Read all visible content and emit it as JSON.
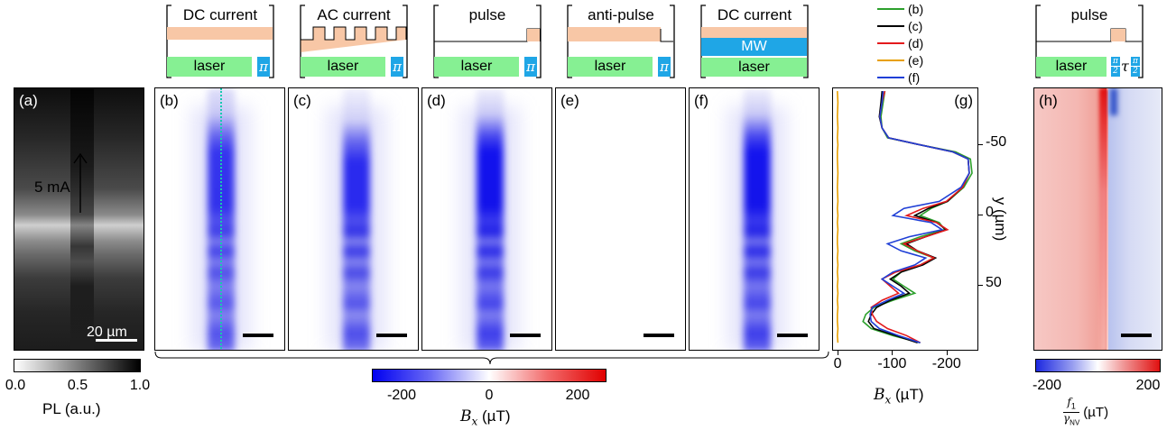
{
  "panels": {
    "a": {
      "label": "(a)",
      "arrow_text": "5 mA",
      "scale_text": "20 µm"
    },
    "b": {
      "label": "(b)",
      "seq_title": "DC current",
      "laser": "laser",
      "pi": "π"
    },
    "c": {
      "label": "(c)",
      "seq_title": "AC current",
      "laser": "laser",
      "pi": "π"
    },
    "d": {
      "label": "(d)",
      "seq_title": "pulse",
      "laser": "laser",
      "pi": "π"
    },
    "e": {
      "label": "(e)",
      "seq_title": "anti-pulse",
      "laser": "laser",
      "pi": "π"
    },
    "f": {
      "label": "(f)",
      "seq_title": "DC current",
      "mw": "MW",
      "laser": "laser"
    },
    "g": {
      "label": "(g)"
    },
    "h": {
      "label": "(h)",
      "seq_title": "pulse",
      "laser": "laser",
      "half_pi": "π",
      "two": "2",
      "tau": "τ"
    }
  },
  "colorbars": {
    "pl": {
      "ticks": [
        "0.0",
        "0.5",
        "1.0"
      ],
      "label": "PL (a.u.)"
    },
    "bx": {
      "ticks": [
        "-200",
        "0",
        "200"
      ],
      "label_symbol": "B",
      "label_sub": "x",
      "label_unit": "(µT)"
    },
    "f1": {
      "ticks": [
        "-200",
        "200"
      ],
      "num": "f",
      "num_sub": "1",
      "den": "γ",
      "den_sub": "NV",
      "unit": "(µT)"
    }
  },
  "chart_data": {
    "type": "line",
    "xlabel_symbol": "B",
    "xlabel_sub": "x",
    "xlabel_unit": "(µT)",
    "ylabel": "y (µm)",
    "xticks": [
      "0",
      "-100",
      "-200"
    ],
    "yticks": [
      "-50",
      "0",
      "50"
    ],
    "xlim": [
      10,
      -255
    ],
    "ylim": [
      -90,
      95
    ],
    "legend": [
      "(b)",
      "(c)",
      "(d)",
      "(e)",
      "(f)"
    ],
    "colors": {
      "(b)": "#2ca02c",
      "(c)": "#000000",
      "(d)": "#e31a1c",
      "(e)": "#e8a000",
      "(f)": "#1f3fd6"
    },
    "series": [
      {
        "name": "(b)",
        "y": [
          -88,
          -80,
          -70,
          -62,
          -55,
          -50,
          -45,
          -40,
          -30,
          -20,
          -10,
          -5,
          0,
          5,
          10,
          15,
          20,
          25,
          30,
          35,
          40,
          45,
          50,
          55,
          60,
          65,
          70,
          75,
          80,
          85,
          90
        ],
        "x": [
          -85,
          -82,
          -78,
          -80,
          -90,
          -150,
          -215,
          -242,
          -245,
          -230,
          -200,
          -170,
          -150,
          -185,
          -195,
          -150,
          -115,
          -140,
          -175,
          -150,
          -115,
          -100,
          -120,
          -140,
          -100,
          -65,
          -50,
          -45,
          -60,
          -100,
          -150
        ]
      },
      {
        "name": "(c)",
        "y": [
          -88,
          -80,
          -70,
          -62,
          -55,
          -50,
          -45,
          -40,
          -30,
          -20,
          -10,
          -5,
          0,
          5,
          10,
          15,
          20,
          25,
          30,
          35,
          40,
          45,
          50,
          55,
          60,
          65,
          70,
          75,
          80,
          85,
          90
        ],
        "x": [
          -80,
          -78,
          -75,
          -80,
          -92,
          -150,
          -210,
          -238,
          -240,
          -228,
          -200,
          -165,
          -140,
          -180,
          -198,
          -160,
          -125,
          -145,
          -178,
          -155,
          -115,
          -95,
          -115,
          -130,
          -95,
          -70,
          -60,
          -55,
          -65,
          -105,
          -145
        ]
      },
      {
        "name": "(d)",
        "y": [
          -88,
          -80,
          -70,
          -62,
          -55,
          -50,
          -45,
          -40,
          -30,
          -20,
          -10,
          -5,
          0,
          5,
          10,
          15,
          20,
          25,
          30,
          35,
          40,
          45,
          50,
          55,
          60,
          65,
          70,
          75,
          80,
          85,
          90
        ],
        "x": [
          -85,
          -80,
          -76,
          -80,
          -92,
          -150,
          -210,
          -238,
          -240,
          -228,
          -198,
          -155,
          -125,
          -180,
          -200,
          -160,
          -120,
          -145,
          -175,
          -150,
          -105,
          -80,
          -95,
          -110,
          -80,
          -60,
          -62,
          -70,
          -90,
          -125,
          -150
        ]
      },
      {
        "name": "(e)",
        "y": [
          -88,
          -80,
          -70,
          -62,
          -55,
          -50,
          -45,
          -40,
          -30,
          -20,
          -10,
          -5,
          0,
          5,
          10,
          15,
          20,
          25,
          30,
          35,
          40,
          45,
          50,
          55,
          60,
          65,
          70,
          75,
          80,
          85,
          90
        ],
        "x": [
          2,
          1,
          2,
          1,
          2,
          1,
          2,
          2,
          1,
          2,
          1,
          2,
          1,
          2,
          1,
          2,
          2,
          1,
          2,
          1,
          2,
          1,
          2,
          1,
          2,
          1,
          2,
          2,
          1,
          2,
          1
        ]
      },
      {
        "name": "(f)",
        "y": [
          -88,
          -80,
          -70,
          -62,
          -55,
          -50,
          -45,
          -40,
          -30,
          -20,
          -10,
          -5,
          0,
          5,
          10,
          15,
          20,
          25,
          30,
          35,
          40,
          45,
          50,
          55,
          60,
          65,
          70,
          75,
          80,
          85,
          90
        ],
        "x": [
          -82,
          -80,
          -76,
          -80,
          -92,
          -150,
          -210,
          -238,
          -240,
          -225,
          -185,
          -120,
          -100,
          -170,
          -190,
          -130,
          -90,
          -115,
          -160,
          -140,
          -100,
          -80,
          -100,
          -120,
          -90,
          -62,
          -58,
          -60,
          -75,
          -110,
          -150
        ]
      }
    ]
  }
}
